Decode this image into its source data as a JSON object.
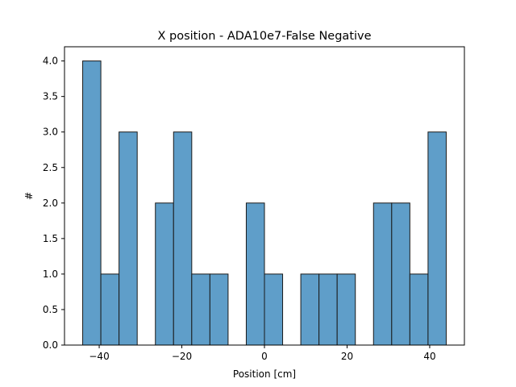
{
  "chart_data": {
    "type": "bar",
    "title": "X position - ADA10e7-False Negative",
    "xlabel": "Position [cm]",
    "ylabel": "#",
    "xlim": [
      -48.4,
      48.4
    ],
    "ylim": [
      0,
      4.2
    ],
    "xticks": [
      -40,
      -20,
      0,
      20,
      40
    ],
    "xtick_labels": [
      "−40",
      "−20",
      "0",
      "20",
      "40"
    ],
    "yticks": [
      0.0,
      0.5,
      1.0,
      1.5,
      2.0,
      2.5,
      3.0,
      3.5,
      4.0
    ],
    "ytick_labels": [
      "0.0",
      "0.5",
      "1.0",
      "1.5",
      "2.0",
      "2.5",
      "3.0",
      "3.5",
      "4.0"
    ],
    "grid": false,
    "bar_color": "#5f9ec9",
    "edge_color": "#1a1a1a",
    "bins": [
      {
        "x0": -44.0,
        "x1": -39.6,
        "count": 4
      },
      {
        "x0": -39.6,
        "x1": -35.2,
        "count": 1
      },
      {
        "x0": -35.2,
        "x1": -30.8,
        "count": 3
      },
      {
        "x0": -30.8,
        "x1": -26.4,
        "count": 0
      },
      {
        "x0": -26.4,
        "x1": -22.0,
        "count": 2
      },
      {
        "x0": -22.0,
        "x1": -17.6,
        "count": 3
      },
      {
        "x0": -17.6,
        "x1": -13.2,
        "count": 1
      },
      {
        "x0": -13.2,
        "x1": -8.8,
        "count": 1
      },
      {
        "x0": -8.8,
        "x1": -4.4,
        "count": 0
      },
      {
        "x0": -4.4,
        "x1": 0.0,
        "count": 2
      },
      {
        "x0": 0.0,
        "x1": 4.4,
        "count": 1
      },
      {
        "x0": 4.4,
        "x1": 8.8,
        "count": 0
      },
      {
        "x0": 8.8,
        "x1": 13.2,
        "count": 1
      },
      {
        "x0": 13.2,
        "x1": 17.6,
        "count": 1
      },
      {
        "x0": 17.6,
        "x1": 22.0,
        "count": 1
      },
      {
        "x0": 22.0,
        "x1": 26.4,
        "count": 0
      },
      {
        "x0": 26.4,
        "x1": 30.8,
        "count": 2
      },
      {
        "x0": 30.8,
        "x1": 35.2,
        "count": 2
      },
      {
        "x0": 35.2,
        "x1": 39.6,
        "count": 1
      },
      {
        "x0": 39.6,
        "x1": 44.0,
        "count": 3
      }
    ]
  }
}
